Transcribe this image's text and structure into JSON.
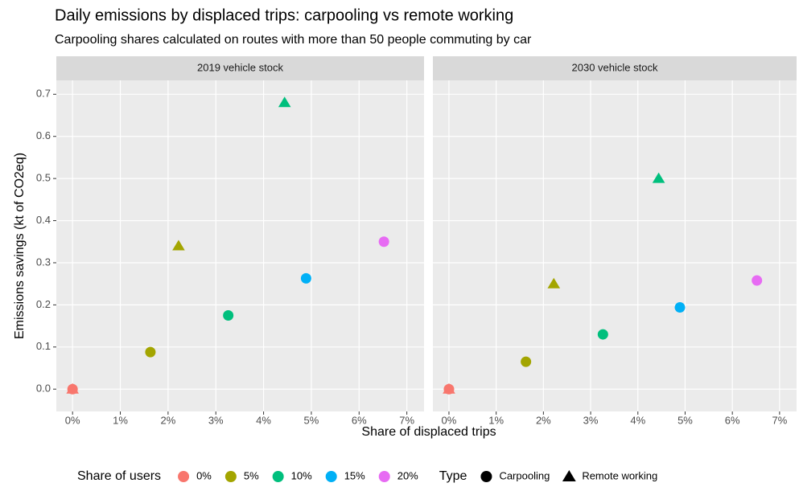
{
  "title": "Daily emissions by displaced trips: carpooling vs remote working",
  "subtitle": "Carpooling shares calculated on routes with more than 50 people commuting by car",
  "x_label": "Share of displaced trips",
  "y_label": "Emissions savings (kt of CO2eq)",
  "color_legend": {
    "title": "Share of users",
    "items": [
      {
        "label": "0%",
        "color": "#F8766D"
      },
      {
        "label": "5%",
        "color": "#A3A500"
      },
      {
        "label": "10%",
        "color": "#00BF7D"
      },
      {
        "label": "15%",
        "color": "#00B0F6"
      },
      {
        "label": "20%",
        "color": "#E76BF3"
      }
    ]
  },
  "shape_legend": {
    "title": "Type",
    "items": [
      {
        "label": "Carpooling",
        "shape": "circle"
      },
      {
        "label": "Remote working",
        "shape": "triangle"
      }
    ]
  },
  "chart_data": [
    {
      "type": "scatter",
      "title": "2019 vehicle stock",
      "xlim": [
        -0.34,
        7.36
      ],
      "ylim": [
        -0.053,
        0.733
      ],
      "grid": true,
      "y_tick_labels": true,
      "xticks": [
        {
          "value": 0,
          "label": "0%"
        },
        {
          "value": 1,
          "label": "1%"
        },
        {
          "value": 2,
          "label": "2%"
        },
        {
          "value": 3,
          "label": "3%"
        },
        {
          "value": 4,
          "label": "4%"
        },
        {
          "value": 5,
          "label": "5%"
        },
        {
          "value": 6,
          "label": "6%"
        },
        {
          "value": 7,
          "label": "7%"
        }
      ],
      "yticks": [
        {
          "value": 0,
          "label": "0.0"
        },
        {
          "value": 0.1,
          "label": "0.1"
        },
        {
          "value": 0.2,
          "label": "0.2"
        },
        {
          "value": 0.3,
          "label": "0.3"
        },
        {
          "value": 0.4,
          "label": "0.4"
        },
        {
          "value": 0.5,
          "label": "0.5"
        },
        {
          "value": 0.6,
          "label": "0.6"
        },
        {
          "value": 0.7,
          "label": "0.7"
        }
      ],
      "series": [
        {
          "shape": "circle",
          "colors": [
            "#F8766D",
            "#A3A500",
            "#00BF7D",
            "#00B0F6",
            "#E76BF3"
          ],
          "x": [
            0,
            1.63,
            3.26,
            4.89,
            6.52
          ],
          "values": [
            0,
            0.088,
            0.175,
            0.263,
            0.35
          ]
        },
        {
          "shape": "triangle",
          "colors": [
            "#F8766D",
            "#A3A500",
            "#00BF7D"
          ],
          "x": [
            0,
            2.22,
            4.44
          ],
          "values": [
            0,
            0.34,
            0.68
          ]
        }
      ]
    },
    {
      "type": "scatter",
      "title": "2030 vehicle stock",
      "xlim": [
        -0.34,
        7.36
      ],
      "ylim": [
        -0.053,
        0.733
      ],
      "grid": true,
      "y_tick_labels": false,
      "xticks": [
        {
          "value": 0,
          "label": "0%"
        },
        {
          "value": 1,
          "label": "1%"
        },
        {
          "value": 2,
          "label": "2%"
        },
        {
          "value": 3,
          "label": "3%"
        },
        {
          "value": 4,
          "label": "4%"
        },
        {
          "value": 5,
          "label": "5%"
        },
        {
          "value": 6,
          "label": "6%"
        },
        {
          "value": 7,
          "label": "7%"
        }
      ],
      "yticks": [
        0,
        0.1,
        0.2,
        0.3,
        0.4,
        0.5,
        0.6,
        0.7
      ],
      "series": [
        {
          "shape": "circle",
          "colors": [
            "#F8766D",
            "#A3A500",
            "#00BF7D",
            "#00B0F6",
            "#E76BF3"
          ],
          "x": [
            0,
            1.63,
            3.26,
            4.89,
            6.52
          ],
          "values": [
            0,
            0.065,
            0.13,
            0.194,
            0.258
          ]
        },
        {
          "shape": "triangle",
          "colors": [
            "#F8766D",
            "#A3A500",
            "#00BF7D"
          ],
          "x": [
            0,
            2.22,
            4.44
          ],
          "values": [
            0,
            0.25,
            0.5
          ]
        }
      ]
    }
  ]
}
